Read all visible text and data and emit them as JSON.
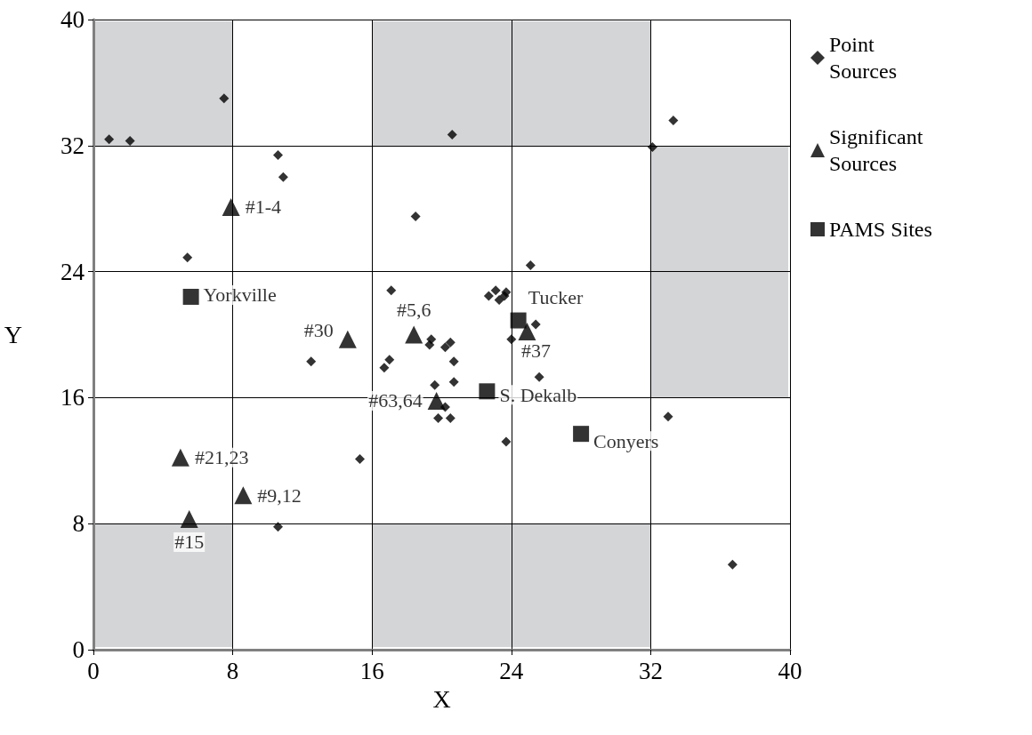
{
  "chart_data": {
    "type": "scatter",
    "xlabel": "X",
    "ylabel": "Y",
    "xlim": [
      0,
      40
    ],
    "xticks": [
      0,
      8,
      16,
      24,
      32,
      40
    ],
    "ylim": [
      0,
      40
    ],
    "yticks": [
      0,
      8,
      16,
      24,
      32,
      40
    ],
    "grid": true,
    "legend": "right",
    "series": [
      {
        "name": "Point Sources",
        "color": "#000000",
        "marker": "diamond",
        "x": [
          0.9,
          2.1,
          7.5,
          10.6,
          10.9,
          5.4,
          18.5,
          20.6,
          32.1,
          33.3,
          25.1,
          17.1,
          22.7,
          23.1,
          23.3,
          23.6,
          23.7,
          25.4,
          24.0,
          25.6,
          12.5,
          19.4,
          19.3,
          20.2,
          20.5,
          20.7,
          20.7,
          17.0,
          16.7,
          19.6,
          20.2,
          19.8,
          20.5,
          23.7,
          15.3,
          10.6,
          33.0,
          36.7
        ],
        "values": [
          32.4,
          32.3,
          35.0,
          31.4,
          30.0,
          24.9,
          27.5,
          32.7,
          31.9,
          33.6,
          24.4,
          22.8,
          22.45,
          22.8,
          22.2,
          22.45,
          22.7,
          20.65,
          19.7,
          17.3,
          18.3,
          19.7,
          19.35,
          19.2,
          19.5,
          18.3,
          17.0,
          18.4,
          17.9,
          16.8,
          15.4,
          14.7,
          14.7,
          13.2,
          12.1,
          7.8,
          14.8,
          5.4
        ]
      },
      {
        "name": "Significant Sources",
        "color": "#000000",
        "marker": "triangle",
        "x": [
          7.9,
          18.4,
          14.6,
          19.7,
          24.9,
          5.0,
          8.6,
          5.5
        ],
        "values": [
          28.1,
          20.0,
          19.7,
          15.8,
          20.2,
          12.2,
          9.8,
          8.3
        ]
      },
      {
        "name": "PAMS Sites",
        "color": "#000000",
        "marker": "square",
        "x": [
          5.6,
          24.4,
          22.6,
          28.0
        ],
        "values": [
          22.4,
          20.9,
          16.4,
          13.7
        ]
      }
    ],
    "annotations": [
      {
        "text": "#1-4",
        "x": 7.9,
        "y": 28.1
      },
      {
        "text": "#5,6",
        "x": 18.4,
        "y": 20.0
      },
      {
        "text": "#30",
        "x": 14.6,
        "y": 19.7
      },
      {
        "text": "#63,64",
        "x": 19.7,
        "y": 15.8
      },
      {
        "text": "#37",
        "x": 24.9,
        "y": 20.2
      },
      {
        "text": "#21,23",
        "x": 5.0,
        "y": 12.2
      },
      {
        "text": "#9,12",
        "x": 8.6,
        "y": 9.8
      },
      {
        "text": "#15",
        "x": 5.5,
        "y": 8.3
      },
      {
        "text": "Yorkville",
        "x": 5.6,
        "y": 22.4
      },
      {
        "text": "Tucker",
        "x": 24.4,
        "y": 20.9
      },
      {
        "text": "S. Dekalb",
        "x": 22.6,
        "y": 16.4
      },
      {
        "text": "Conyers",
        "x": 28.0,
        "y": 13.7
      }
    ]
  }
}
